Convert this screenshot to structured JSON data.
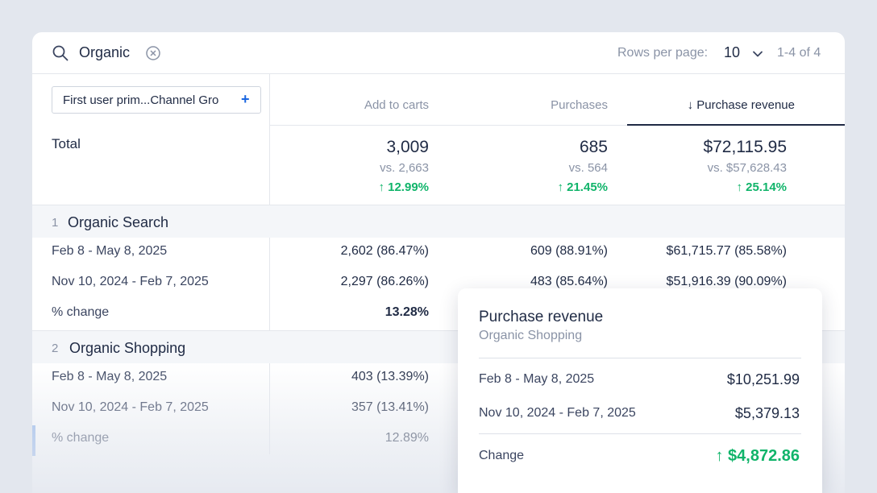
{
  "search": {
    "value": "Organic"
  },
  "pagination": {
    "rows_label": "Rows per page:",
    "rows_value": "10",
    "range": "1-4 of 4"
  },
  "dimension": {
    "label": "First user prim...Channel Gro",
    "plus": "+"
  },
  "columns": [
    {
      "label": "Add to carts"
    },
    {
      "label": "Purchases"
    },
    {
      "label": "↓ Purchase revenue",
      "sorted": true
    }
  ],
  "total": {
    "label": "Total",
    "values": [
      "3,009",
      "685",
      "$72,115.95"
    ],
    "compare": [
      "vs. 2,663",
      "vs. 564",
      "vs. $57,628.43"
    ],
    "change": [
      "↑ 12.99%",
      "↑ 21.45%",
      "↑ 25.14%"
    ]
  },
  "groups": [
    {
      "index": "1",
      "name": "Organic Search",
      "rows": [
        {
          "label": "Feb 8 - May 8, 2025",
          "cells": [
            "2,602 (86.47%)",
            "609 (88.91%)",
            "$61,715.77 (85.58%)"
          ]
        },
        {
          "label": "Nov 10, 2024 - Feb 7, 2025",
          "cells": [
            "2,297 (86.26%)",
            "483 (85.64%)",
            "$51,916.39 (90.09%)"
          ]
        },
        {
          "label": "% change",
          "cells": [
            "13.28%"
          ]
        }
      ]
    },
    {
      "index": "2",
      "name": "Organic Shopping",
      "rows": [
        {
          "label": "Feb 8 - May 8, 2025",
          "cells": [
            "403 (13.39%)"
          ]
        },
        {
          "label": "Nov 10, 2024 - Feb 7, 2025",
          "cells": [
            "357 (13.41%)"
          ]
        },
        {
          "label": "% change",
          "cells": [
            "12.89%"
          ]
        }
      ]
    }
  ],
  "tooltip": {
    "title": "Purchase revenue",
    "subtitle": "Organic Shopping",
    "rows": [
      {
        "label": "Feb 8 - May 8, 2025",
        "value": "$10,251.99"
      },
      {
        "label": "Nov 10, 2024 - Feb 7, 2025",
        "value": "$5,379.13"
      }
    ],
    "change_label": "Change",
    "change_value": "↑ $4,872.86"
  },
  "colors": {
    "positive": "#10b46a",
    "accent": "#1a66e0",
    "text": "#1f2a44",
    "muted": "#8a93a6"
  },
  "icons": {
    "search": "search-icon",
    "clear": "clear-icon",
    "dropdown": "chevron-down-icon",
    "add": "plus-icon"
  }
}
